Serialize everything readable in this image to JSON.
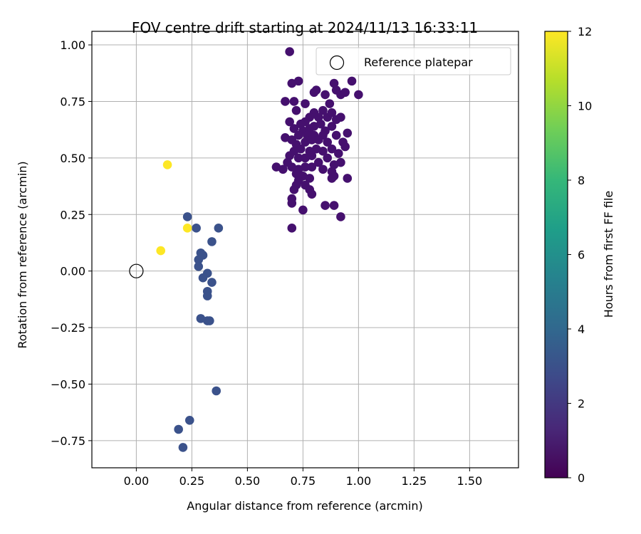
{
  "chart_data": {
    "type": "scatter",
    "title": "FOV centre drift starting at 2024/11/13 16:33:11",
    "xlabel": "Angular distance from reference (arcmin)",
    "ylabel": "Rotation from reference (arcmin)",
    "xlim": [
      -0.2,
      1.72
    ],
    "ylim": [
      -0.87,
      1.06
    ],
    "xticks": [
      0.0,
      0.25,
      0.5,
      0.75,
      1.0,
      1.25,
      1.5
    ],
    "xtick_labels": [
      "0.00",
      "0.25",
      "0.50",
      "0.75",
      "1.00",
      "1.25",
      "1.50"
    ],
    "yticks": [
      -0.75,
      -0.5,
      -0.25,
      0.0,
      0.25,
      0.5,
      0.75,
      1.0
    ],
    "ytick_labels": [
      "−0.75",
      "−0.50",
      "−0.25",
      "0.00",
      "0.25",
      "0.50",
      "0.75",
      "1.00"
    ],
    "grid": true,
    "legend": {
      "position": "upper right",
      "entries": [
        "Reference platepar"
      ]
    },
    "reference_point": {
      "x": 0.0,
      "y": 0.0,
      "marker": "open-circle"
    },
    "colorbar": {
      "label": "Hours from first FF file",
      "range": [
        0,
        12
      ],
      "ticks": [
        0,
        2,
        4,
        6,
        8,
        10,
        12
      ],
      "tick_labels": [
        "0",
        "2",
        "4",
        "6",
        "8",
        "10",
        "12"
      ],
      "colormap": "viridis",
      "colormap_stops": [
        "#440154",
        "#482878",
        "#3e4989",
        "#31688e",
        "#26828e",
        "#1f9e89",
        "#35b779",
        "#6ece58",
        "#b5de2b",
        "#fde725"
      ]
    },
    "series": [
      {
        "group": "hours 0-2",
        "color": "#45106e",
        "points": [
          [
            0.69,
            0.97
          ],
          [
            0.7,
            0.83
          ],
          [
            0.73,
            0.84
          ],
          [
            0.71,
            0.75
          ],
          [
            0.67,
            0.75
          ],
          [
            0.72,
            0.71
          ],
          [
            0.76,
            0.74
          ],
          [
            0.8,
            0.79
          ],
          [
            0.81,
            0.8
          ],
          [
            0.85,
            0.78
          ],
          [
            0.89,
            0.83
          ],
          [
            0.9,
            0.8
          ],
          [
            0.92,
            0.78
          ],
          [
            0.94,
            0.79
          ],
          [
            0.97,
            0.84
          ],
          [
            1.0,
            0.78
          ],
          [
            0.87,
            0.74
          ],
          [
            0.84,
            0.71
          ],
          [
            0.8,
            0.7
          ],
          [
            0.82,
            0.68
          ],
          [
            0.86,
            0.68
          ],
          [
            0.88,
            0.7
          ],
          [
            0.9,
            0.67
          ],
          [
            0.92,
            0.68
          ],
          [
            0.78,
            0.68
          ],
          [
            0.76,
            0.66
          ],
          [
            0.74,
            0.65
          ],
          [
            0.69,
            0.66
          ],
          [
            0.71,
            0.63
          ],
          [
            0.75,
            0.62
          ],
          [
            0.78,
            0.63
          ],
          [
            0.8,
            0.64
          ],
          [
            0.83,
            0.65
          ],
          [
            0.85,
            0.62
          ],
          [
            0.88,
            0.64
          ],
          [
            0.84,
            0.6
          ],
          [
            0.8,
            0.6
          ],
          [
            0.77,
            0.6
          ],
          [
            0.73,
            0.6
          ],
          [
            0.7,
            0.58
          ],
          [
            0.67,
            0.59
          ],
          [
            0.72,
            0.56
          ],
          [
            0.76,
            0.57
          ],
          [
            0.79,
            0.58
          ],
          [
            0.82,
            0.58
          ],
          [
            0.86,
            0.57
          ],
          [
            0.9,
            0.6
          ],
          [
            0.93,
            0.57
          ],
          [
            0.94,
            0.55
          ],
          [
            0.95,
            0.61
          ],
          [
            0.91,
            0.52
          ],
          [
            0.88,
            0.54
          ],
          [
            0.84,
            0.53
          ],
          [
            0.81,
            0.54
          ],
          [
            0.78,
            0.53
          ],
          [
            0.74,
            0.54
          ],
          [
            0.71,
            0.53
          ],
          [
            0.69,
            0.51
          ],
          [
            0.73,
            0.5
          ],
          [
            0.76,
            0.5
          ],
          [
            0.79,
            0.51
          ],
          [
            0.82,
            0.48
          ],
          [
            0.86,
            0.5
          ],
          [
            0.89,
            0.47
          ],
          [
            0.92,
            0.48
          ],
          [
            0.88,
            0.44
          ],
          [
            0.89,
            0.42
          ],
          [
            0.88,
            0.41
          ],
          [
            0.84,
            0.45
          ],
          [
            0.79,
            0.46
          ],
          [
            0.76,
            0.46
          ],
          [
            0.73,
            0.45
          ],
          [
            0.7,
            0.46
          ],
          [
            0.66,
            0.45
          ],
          [
            0.63,
            0.46
          ],
          [
            0.68,
            0.48
          ],
          [
            0.72,
            0.43
          ],
          [
            0.75,
            0.42
          ],
          [
            0.78,
            0.41
          ],
          [
            0.73,
            0.4
          ],
          [
            0.76,
            0.38
          ],
          [
            0.78,
            0.36
          ],
          [
            0.72,
            0.38
          ],
          [
            0.71,
            0.36
          ],
          [
            0.79,
            0.34
          ],
          [
            0.7,
            0.32
          ],
          [
            0.7,
            0.3
          ],
          [
            0.75,
            0.27
          ],
          [
            0.85,
            0.29
          ],
          [
            0.89,
            0.29
          ],
          [
            0.92,
            0.24
          ],
          [
            0.7,
            0.19
          ],
          [
            0.95,
            0.41
          ]
        ]
      },
      {
        "group": "hours 2-4",
        "color": "#3b528b",
        "points": [
          [
            0.23,
            0.24
          ],
          [
            0.27,
            0.19
          ],
          [
            0.37,
            0.19
          ],
          [
            0.34,
            0.13
          ],
          [
            0.29,
            0.08
          ],
          [
            0.3,
            0.07
          ],
          [
            0.28,
            0.05
          ],
          [
            0.28,
            0.02
          ],
          [
            0.32,
            -0.01
          ],
          [
            0.3,
            -0.03
          ],
          [
            0.34,
            -0.05
          ],
          [
            0.32,
            -0.09
          ],
          [
            0.32,
            -0.11
          ],
          [
            0.29,
            -0.21
          ],
          [
            0.32,
            -0.22
          ],
          [
            0.33,
            -0.22
          ],
          [
            0.36,
            -0.53
          ],
          [
            0.24,
            -0.66
          ],
          [
            0.19,
            -0.7
          ],
          [
            0.21,
            -0.78
          ]
        ]
      },
      {
        "group": "hours ~12",
        "color": "#fde725",
        "points": [
          [
            0.14,
            0.47
          ],
          [
            0.23,
            0.19
          ],
          [
            0.11,
            0.09
          ]
        ]
      }
    ]
  }
}
